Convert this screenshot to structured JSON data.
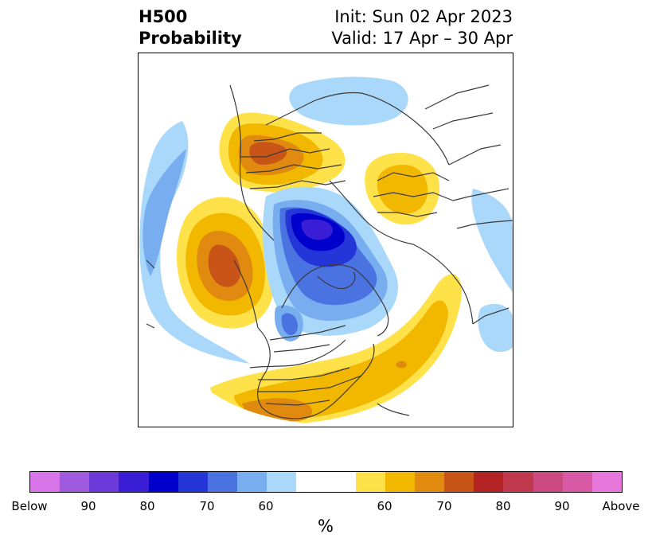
{
  "title": {
    "variable": "H500",
    "subtitle": "Probability",
    "init": "Init: Sun 02 Apr 2023",
    "valid": "Valid: 17 Apr – 30 Apr"
  },
  "colors": {
    "below": [
      "#d875e8",
      "#a05ae0",
      "#6b3ad8",
      "#3a1ed6",
      "#0000cc",
      "#2436d8",
      "#4a72e0",
      "#78aef0",
      "#aad8fa"
    ],
    "neutral": "#ffffff",
    "above": [
      "#ffe24a",
      "#f2b800",
      "#e08a10",
      "#c85418",
      "#b52424",
      "#c0384c",
      "#cc4a82",
      "#d85aa6",
      "#e877dc"
    ],
    "coastline": "#3a3a3a"
  },
  "colorbar": {
    "ticks": [
      "Below",
      "90",
      "80",
      "70",
      "60",
      "60",
      "70",
      "80",
      "90",
      "Above"
    ],
    "unit": "%"
  },
  "map": {
    "projection": "north-polar-stereographic",
    "anomalies": [
      {
        "region": "north-pacific-west-north-america",
        "sign": "above",
        "peak_category": "70"
      },
      {
        "region": "eastern-europe-scandinavia",
        "sign": "above",
        "peak_category": "70"
      },
      {
        "region": "central-siberia",
        "sign": "above",
        "peak_category": "60"
      },
      {
        "region": "eastern-us-western-atlantic",
        "sign": "above",
        "peak_category": "60"
      },
      {
        "region": "canadian-arctic-greenland",
        "sign": "below",
        "peak_category": "80"
      },
      {
        "region": "eastern-arctic-siberia",
        "sign": "below",
        "peak_category": "60"
      },
      {
        "region": "western-north-pacific",
        "sign": "below",
        "peak_category": "60"
      }
    ]
  }
}
